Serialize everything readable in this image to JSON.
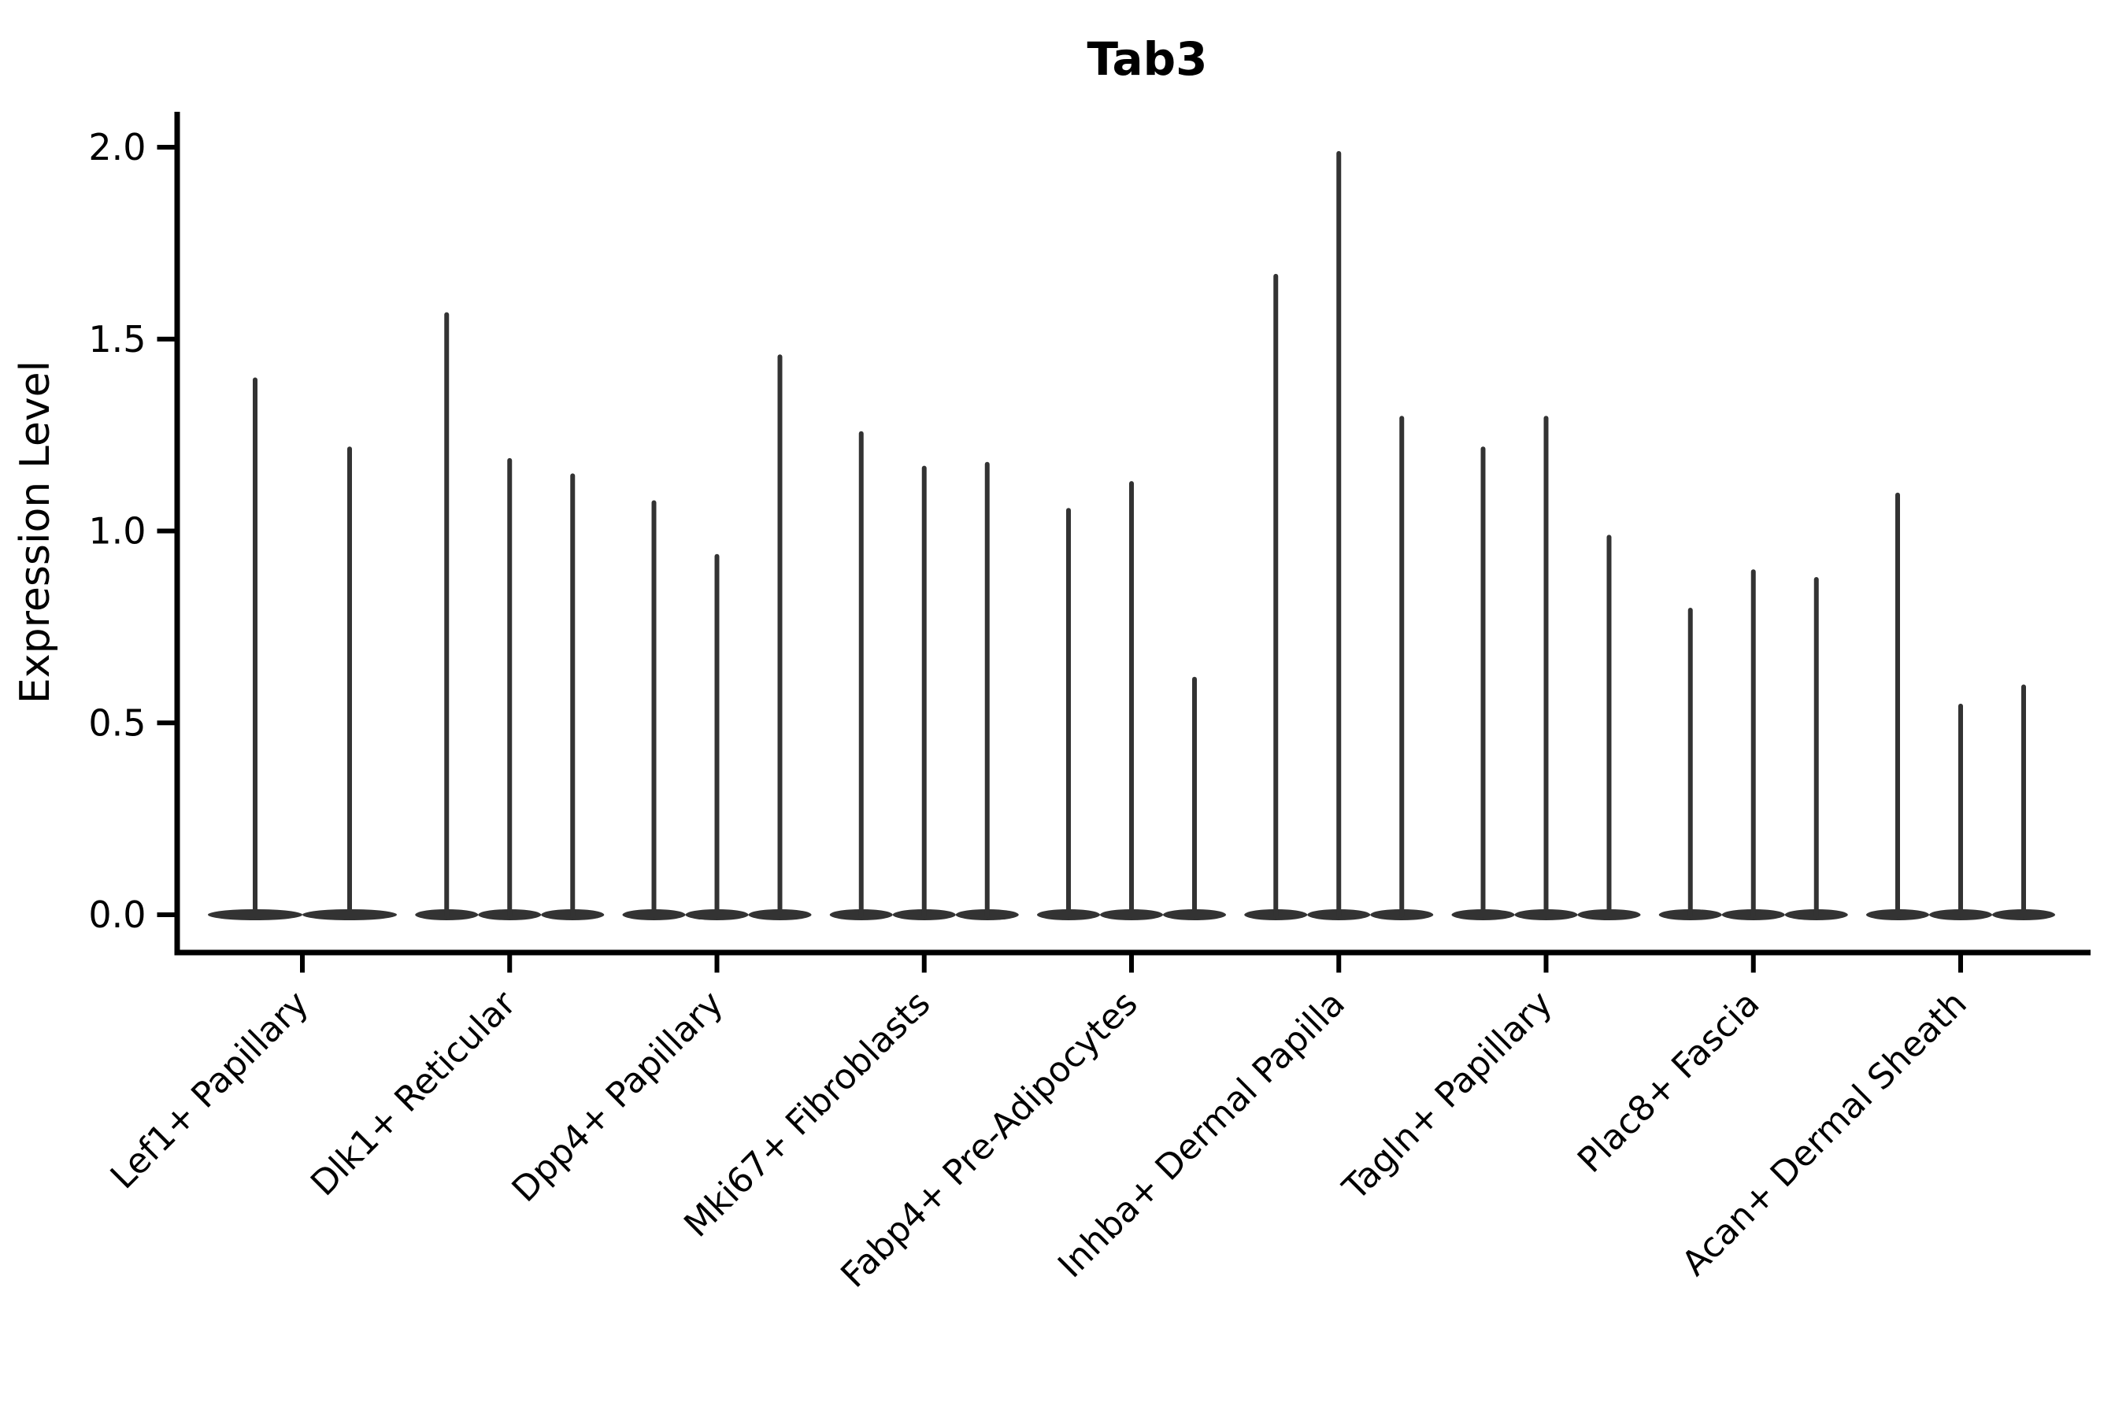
{
  "title": "Tab3",
  "y_axis": {
    "label": "Expression Level"
  },
  "chart_data": {
    "type": "violin",
    "title": "Tab3",
    "xlabel": "",
    "ylabel": "Expression Level",
    "ylim": [
      0,
      2.09
    ],
    "yticks": [
      0.0,
      0.5,
      1.0,
      1.5,
      2.0
    ],
    "ytick_labels": [
      "0.0",
      "0.5",
      "1.0",
      "1.5",
      "2.0"
    ],
    "grid": false,
    "legend": null,
    "violin_color": "#333333",
    "axis_color": "#000000",
    "x_tick_label_rotation_deg": 45,
    "categories": [
      "Lef1+ Papillary",
      "Dlk1+ Reticular",
      "Dpp4+ Papillary",
      "Mki67+ Fibroblasts",
      "Fabp4+ Pre-Adipocytes",
      "Inhba+ Dermal Papilla",
      "Tagln+ Papillary",
      "Plac8+ Fascia",
      "Acan+ Dermal Sheath"
    ],
    "violins": [
      {
        "category": "Lef1+ Papillary",
        "max_values": [
          1.4,
          1.22
        ]
      },
      {
        "category": "Dlk1+ Reticular",
        "max_values": [
          1.57,
          1.19,
          1.15
        ]
      },
      {
        "category": "Dpp4+ Papillary",
        "max_values": [
          1.08,
          0.94,
          1.46
        ]
      },
      {
        "category": "Mki67+ Fibroblasts",
        "max_values": [
          1.26,
          1.17,
          1.18
        ]
      },
      {
        "category": "Fabp4+ Pre-Adipocytes",
        "max_values": [
          1.06,
          1.13,
          0.62
        ]
      },
      {
        "category": "Inhba+ Dermal Papilla",
        "max_values": [
          1.67,
          1.99,
          1.3
        ]
      },
      {
        "category": "Tagln+ Papillary",
        "max_values": [
          1.22,
          1.3,
          0.99
        ]
      },
      {
        "category": "Plac8+ Fascia",
        "max_values": [
          0.8,
          0.9,
          0.88
        ]
      },
      {
        "category": "Acan+ Dermal Sheath",
        "max_values": [
          1.1,
          0.55,
          0.6
        ]
      }
    ]
  }
}
